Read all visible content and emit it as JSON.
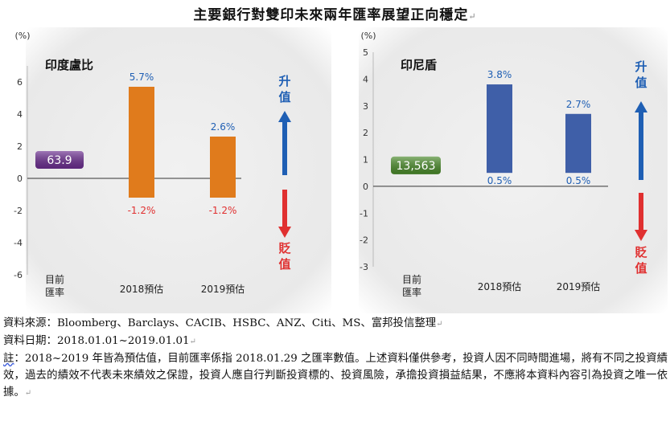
{
  "title": "主要銀行對雙印未來兩年匯率展望正向穩定",
  "paragraph_mark": "↵",
  "chart_data": [
    {
      "type": "bar",
      "title": "印度盧比",
      "unit_label": "(%)",
      "current_rate": {
        "value": "63.9",
        "color": "#6b2d8f",
        "label_lines": [
          "目前",
          "匯率"
        ]
      },
      "categories": [
        "2018預估",
        "2019預估"
      ],
      "series": [
        {
          "values": [
            5.7,
            2.6
          ],
          "color": "#e07b1c"
        },
        {
          "values": [
            -1.2,
            -1.2
          ],
          "color": "#e07b1c"
        }
      ],
      "data_labels": {
        "up": [
          "5.7%",
          "2.6%"
        ],
        "down": [
          "-1.2%",
          "-1.2%"
        ]
      },
      "y_ticks": [
        6,
        4,
        2,
        0,
        -2,
        -4,
        -6
      ],
      "ylim": [
        -6,
        7
      ],
      "arrow_up": {
        "label": [
          "升",
          "值"
        ],
        "color": "#1f5fb4"
      },
      "arrow_down": {
        "label": [
          "貶",
          "值"
        ],
        "color": "#e03030"
      }
    },
    {
      "type": "bar",
      "title": "印尼盾",
      "unit_label": "(%)",
      "current_rate": {
        "value": "13,563",
        "color": "#4a8a2a",
        "label_lines": [
          "目前",
          "匯率"
        ]
      },
      "categories": [
        "2018預估",
        "2019預估"
      ],
      "series": [
        {
          "values": [
            3.8,
            2.7
          ],
          "color": "#3f5fa8"
        },
        {
          "values": [
            0.5,
            0.5
          ],
          "color": "#3f5fa8"
        }
      ],
      "data_labels": {
        "up": [
          "3.8%",
          "2.7%"
        ],
        "down": [
          "0.5%",
          "0.5%"
        ]
      },
      "y_ticks": [
        5,
        4,
        3,
        2,
        1,
        0,
        -1,
        -2,
        -3
      ],
      "ylim": [
        -3,
        5
      ],
      "arrow_up": {
        "label": [
          "升",
          "值"
        ],
        "color": "#1f5fb4"
      },
      "arrow_down": {
        "label": [
          "貶",
          "值"
        ],
        "color": "#e03030"
      }
    }
  ],
  "notes": {
    "source": "資料來源：Bloomberg、Barclays、CACIB、HSBC、ANZ、Citi、MS、富邦投信整理",
    "date": "資料日期：2018.01.01~2019.01.01",
    "disclaimer_label": "註",
    "disclaimer_text": "：2018~2019 年皆為預估值，目前匯率係指 2018.01.29 之匯率數值。上述資料僅供參考，投資人因不同時間進場，將有不同之投資績效，過去的績效不代表未來績效之保證，投資人應自行判斷投資標的、投資風險，承擔投資損益結果，不應將本資料內容引為投資之唯一依據。"
  }
}
